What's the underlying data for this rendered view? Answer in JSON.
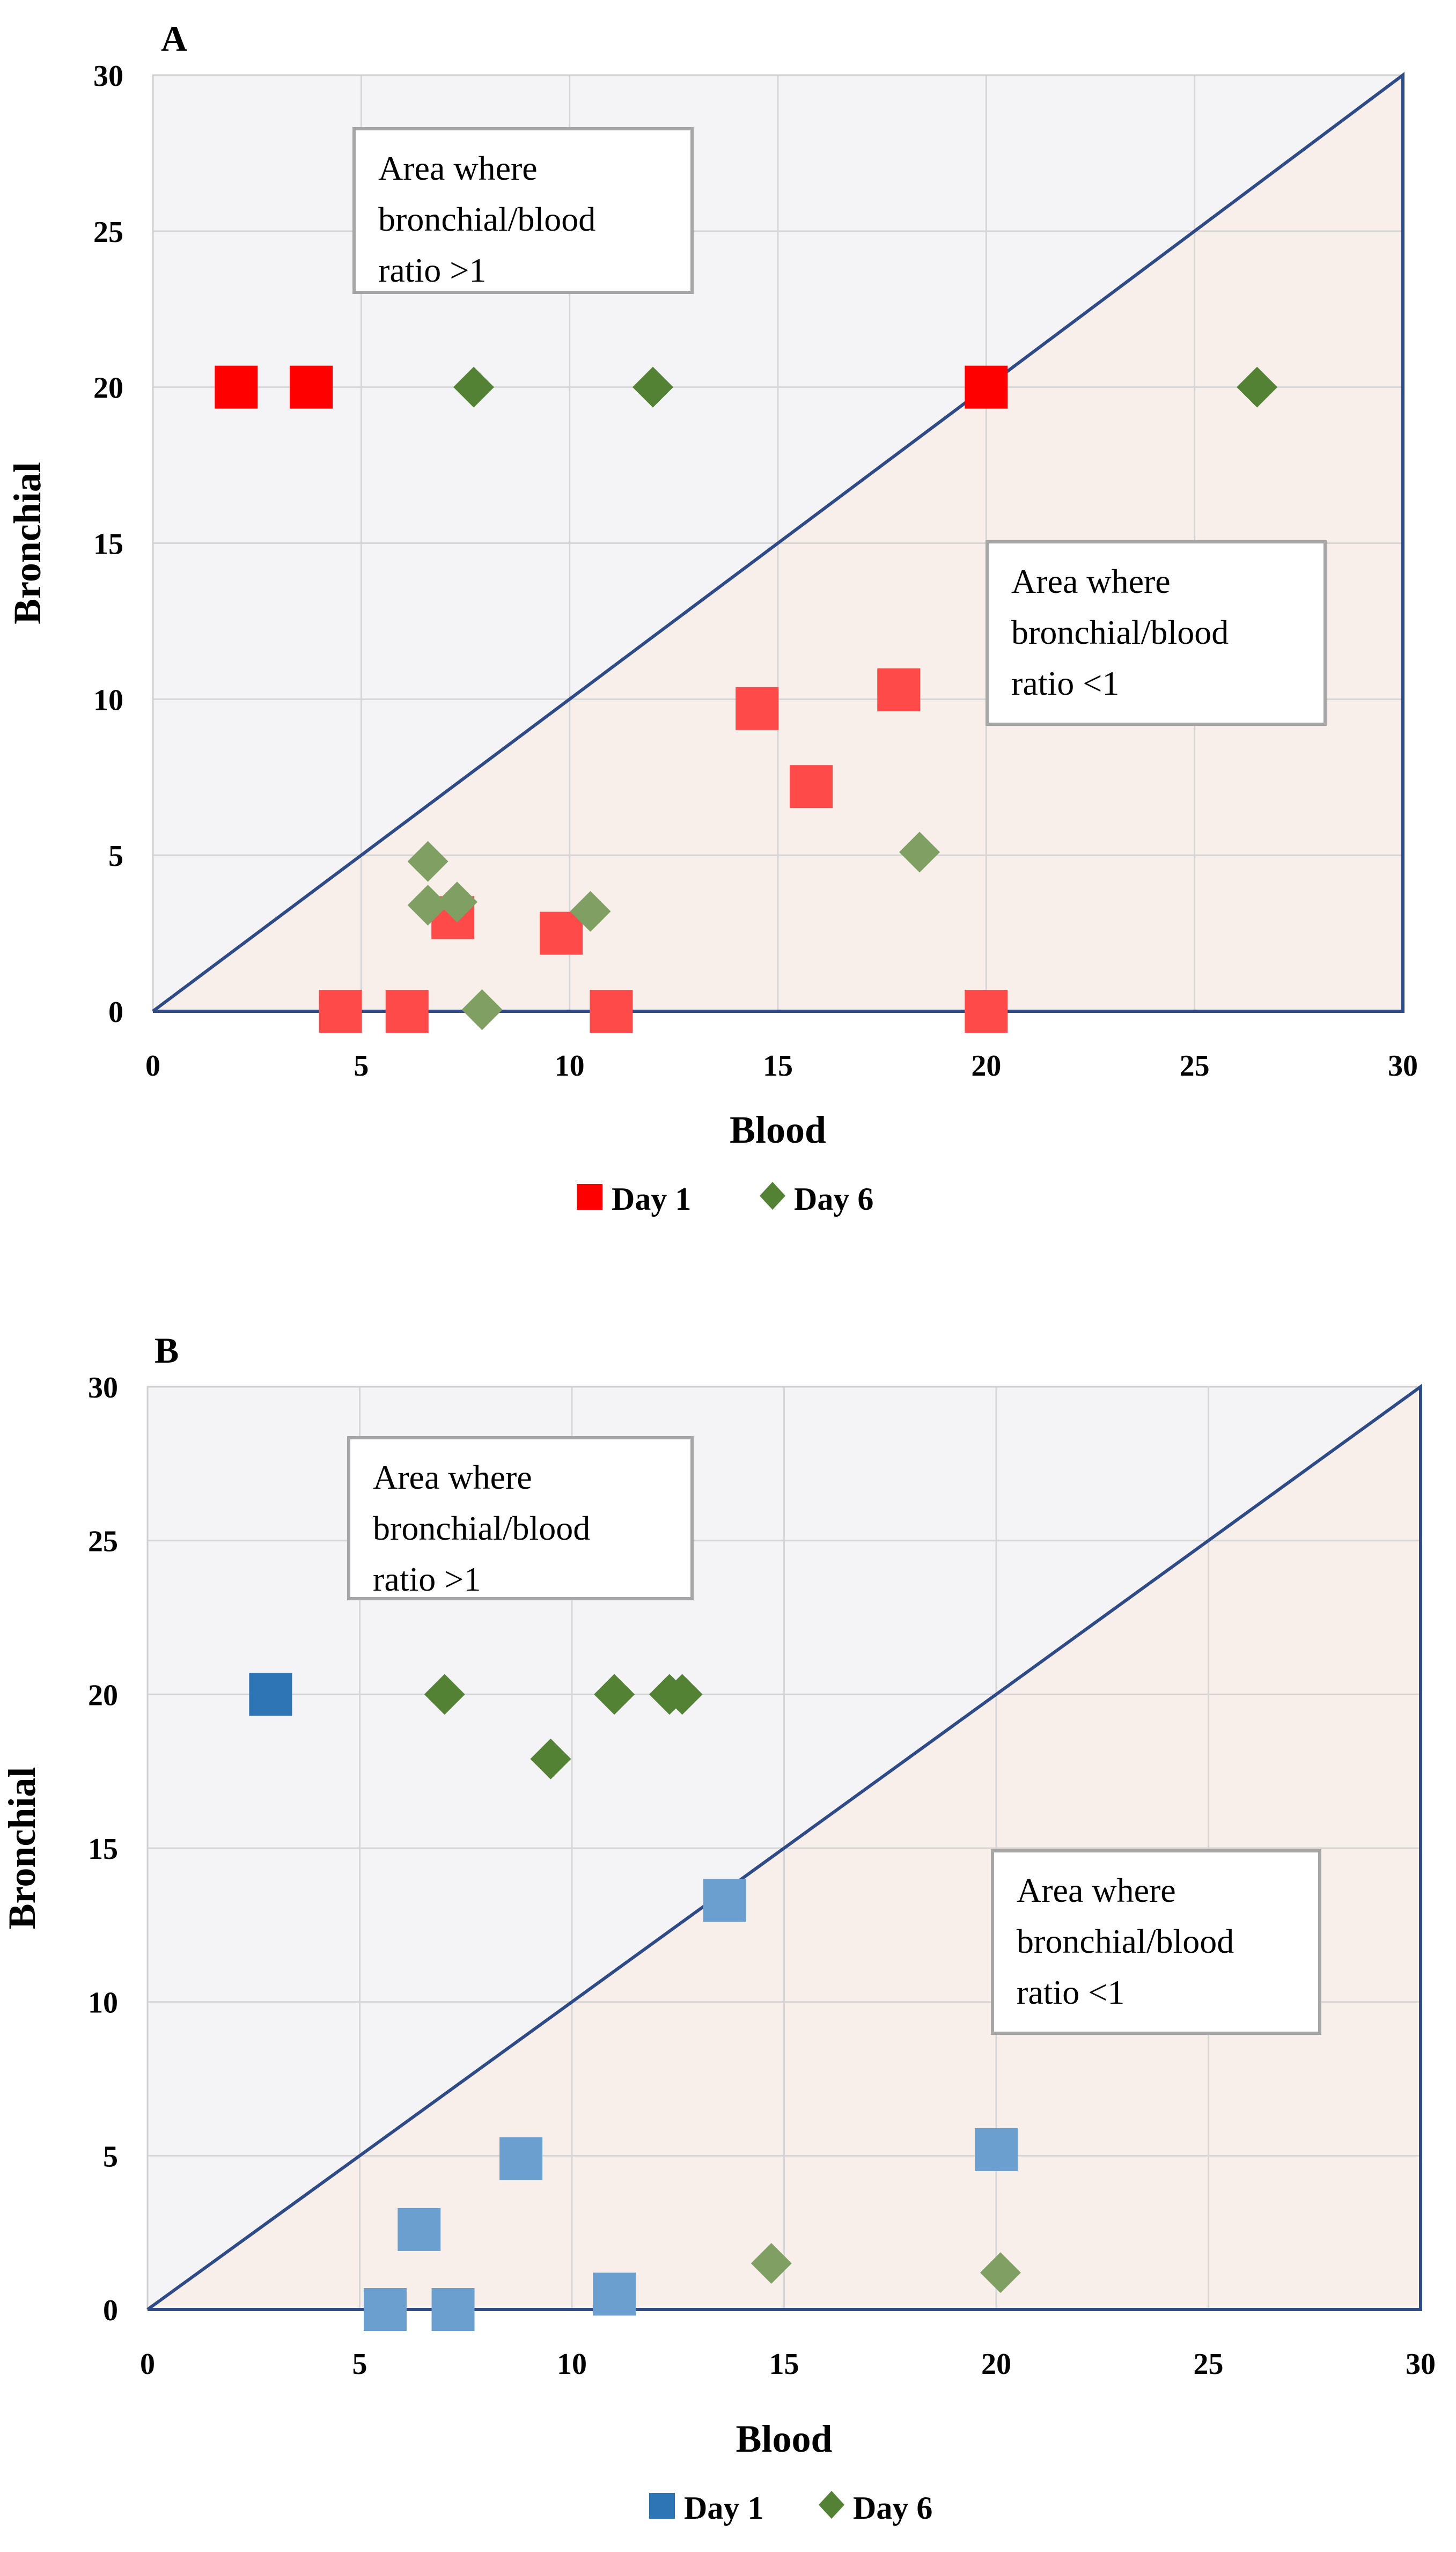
{
  "chart_data": [
    {
      "type": "scatter",
      "panel_label": "A",
      "xlabel": "Blood",
      "ylabel": "Bronchial",
      "xlim": [
        0,
        30
      ],
      "ylim": [
        0,
        30
      ],
      "xticks": [
        "0",
        "5",
        "10",
        "15",
        "20",
        "25",
        "30"
      ],
      "yticks": [
        "0",
        "5",
        "10",
        "15",
        "20",
        "25",
        "30"
      ],
      "grid": true,
      "reference_line": {
        "from": [
          0,
          0
        ],
        "to": [
          30,
          30
        ],
        "color": "#2f4b87"
      },
      "annotations": [
        {
          "lines": [
            "Area where",
            "bronchial/blood",
            "ratio >1"
          ],
          "region": "above-line"
        },
        {
          "lines": [
            "Area where",
            "bronchial/blood",
            "ratio <1"
          ],
          "region": "below-line"
        }
      ],
      "series": [
        {
          "name": "Day 1",
          "marker": "square",
          "color": "#ff0000",
          "light_color": "#ff4a4a",
          "points": [
            [
              2,
              20
            ],
            [
              3.8,
              20
            ],
            [
              20,
              20
            ],
            [
              14.5,
              9.7
            ],
            [
              17.9,
              10.3
            ],
            [
              15.8,
              7.2
            ],
            [
              7.2,
              3.0
            ],
            [
              9.8,
              2.5
            ],
            [
              4.5,
              0
            ],
            [
              6.1,
              0
            ],
            [
              11.0,
              0
            ],
            [
              20,
              0
            ]
          ]
        },
        {
          "name": "Day 6",
          "marker": "diamond",
          "color": "#548235",
          "light_color": "#7f9f63",
          "points": [
            [
              7.7,
              20
            ],
            [
              12.0,
              20
            ],
            [
              26.5,
              20
            ],
            [
              6.6,
              4.8
            ],
            [
              6.6,
              3.4
            ],
            [
              7.3,
              3.5
            ],
            [
              10.5,
              3.2
            ],
            [
              18.4,
              5.1
            ],
            [
              7.9,
              0.05
            ]
          ]
        }
      ],
      "legend": [
        "Day 1",
        "Day 6"
      ]
    },
    {
      "type": "scatter",
      "panel_label": "B",
      "xlabel": "Blood",
      "ylabel": "Bronchial",
      "xlim": [
        0,
        30
      ],
      "ylim": [
        0,
        30
      ],
      "xticks": [
        "0",
        "5",
        "10",
        "15",
        "20",
        "25",
        "30"
      ],
      "yticks": [
        "0",
        "5",
        "10",
        "15",
        "20",
        "25",
        "30"
      ],
      "grid": true,
      "reference_line": {
        "from": [
          0,
          0
        ],
        "to": [
          30,
          30
        ],
        "color": "#2f4b87"
      },
      "annotations": [
        {
          "lines": [
            "Area where",
            "bronchial/blood",
            "ratio >1"
          ],
          "region": "above-line"
        },
        {
          "lines": [
            "Area where",
            "bronchial/blood",
            "ratio <1"
          ],
          "region": "below-line"
        }
      ],
      "series": [
        {
          "name": "Day 1",
          "marker": "square",
          "color": "#2e75b6",
          "light_color": "#6a9fd0",
          "points": [
            [
              2.9,
              20
            ],
            [
              13.6,
              13.3
            ],
            [
              8.8,
              4.9
            ],
            [
              6.4,
              2.6
            ],
            [
              5.6,
              0
            ],
            [
              7.2,
              0
            ],
            [
              11.0,
              0.5
            ],
            [
              20.0,
              5.2
            ]
          ]
        },
        {
          "name": "Day 6",
          "marker": "diamond",
          "color": "#548235",
          "light_color": "#7f9f63",
          "points": [
            [
              7.0,
              20
            ],
            [
              11.0,
              20
            ],
            [
              12.3,
              20
            ],
            [
              12.6,
              20
            ],
            [
              9.5,
              17.9
            ],
            [
              14.7,
              1.5
            ],
            [
              20.1,
              1.2
            ]
          ]
        }
      ],
      "legend": [
        "Day 1",
        "Day 6"
      ]
    }
  ]
}
